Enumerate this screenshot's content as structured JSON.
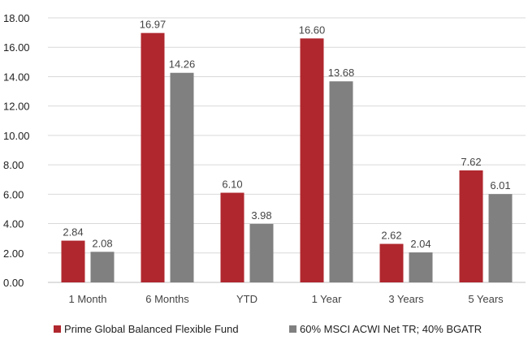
{
  "chart_data": {
    "type": "bar",
    "categories": [
      "1 Month",
      "6 Months",
      "YTD",
      "1 Year",
      "3 Years",
      "5 Years"
    ],
    "series": [
      {
        "name": "Prime Global Balanced Flexible Fund",
        "values": [
          2.84,
          16.97,
          6.1,
          16.6,
          2.62,
          7.62
        ],
        "labels": [
          "2.84",
          "16.97",
          "6.10",
          "16.60",
          "2.62",
          "7.62"
        ],
        "color": "#b0272e"
      },
      {
        "name": "60% MSCI ACWI Net TR; 40% BGATR",
        "values": [
          2.08,
          14.26,
          3.98,
          13.68,
          2.04,
          6.01
        ],
        "labels": [
          "2.08",
          "14.26",
          "3.98",
          "13.68",
          "2.04",
          "6.01"
        ],
        "color": "#808080"
      }
    ],
    "yticks": [
      "0.00",
      "2.00",
      "4.00",
      "6.00",
      "8.00",
      "10.00",
      "12.00",
      "14.00",
      "16.00",
      "18.00"
    ],
    "ylim": [
      0,
      18
    ],
    "title": "",
    "xlabel": "",
    "ylabel": "",
    "grid": true,
    "legend": "bottom",
    "gridColor": "#d9d9d9",
    "axisColor": "#bfbfbf"
  }
}
